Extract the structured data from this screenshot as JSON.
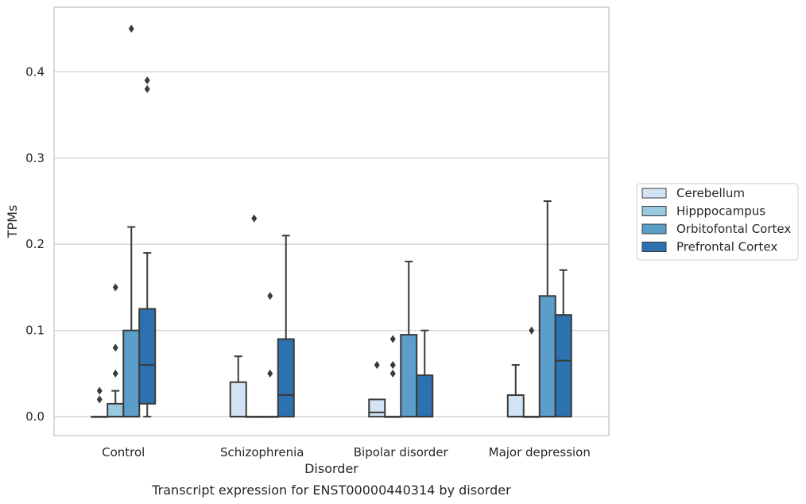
{
  "caption": "Transcript expression for ENST00000440314 by disorder",
  "chart_data": {
    "type": "box",
    "xlabel": "Disorder",
    "ylabel": "TPMs",
    "ylim": [
      -0.022,
      0.475
    ],
    "yticks": [
      0.0,
      0.1,
      0.2,
      0.3,
      0.4
    ],
    "ytick_labels": [
      "0.0",
      "0.1",
      "0.2",
      "0.3",
      "0.4"
    ],
    "grid": "horizontal",
    "legend_position": "right",
    "categories": [
      "Control",
      "Schizophrenia",
      "Bipolar disorder",
      "Major depression"
    ],
    "series": [
      {
        "name": "Cerebellum",
        "color": "#d2e3f3",
        "boxes": [
          {
            "q1": 0.0,
            "median": 0.0,
            "q3": 0.0,
            "whisker_low": 0.0,
            "whisker_high": 0.0,
            "outliers": [
              0.02,
              0.03
            ]
          },
          {
            "q1": 0.0,
            "median": 0.0,
            "q3": 0.04,
            "whisker_low": 0.0,
            "whisker_high": 0.07,
            "outliers": []
          },
          {
            "q1": 0.0,
            "median": 0.005,
            "q3": 0.02,
            "whisker_low": 0.0,
            "whisker_high": 0.02,
            "outliers": [
              0.06
            ]
          },
          {
            "q1": 0.0,
            "median": 0.0,
            "q3": 0.025,
            "whisker_low": 0.0,
            "whisker_high": 0.06,
            "outliers": []
          }
        ]
      },
      {
        "name": "Hipppocampus",
        "color": "#9ac8e0",
        "boxes": [
          {
            "q1": 0.0,
            "median": 0.0,
            "q3": 0.015,
            "whisker_low": 0.0,
            "whisker_high": 0.03,
            "outliers": [
              0.05,
              0.08,
              0.15
            ]
          },
          {
            "q1": 0.0,
            "median": 0.0,
            "q3": 0.0,
            "whisker_low": 0.0,
            "whisker_high": 0.0,
            "outliers": [
              0.23
            ]
          },
          {
            "q1": 0.0,
            "median": 0.0,
            "q3": 0.0,
            "whisker_low": 0.0,
            "whisker_high": 0.0,
            "outliers": [
              0.05,
              0.06,
              0.09
            ]
          },
          {
            "q1": 0.0,
            "median": 0.0,
            "q3": 0.0,
            "whisker_low": 0.0,
            "whisker_high": 0.0,
            "outliers": [
              0.1
            ]
          }
        ]
      },
      {
        "name": "Orbitofontal Cortex",
        "color": "#5a9ec9",
        "boxes": [
          {
            "q1": 0.0,
            "median": 0.0,
            "q3": 0.1,
            "whisker_low": 0.0,
            "whisker_high": 0.22,
            "outliers": [
              0.45
            ]
          },
          {
            "q1": 0.0,
            "median": 0.0,
            "q3": 0.0,
            "whisker_low": 0.0,
            "whisker_high": 0.0,
            "outliers": [
              0.05,
              0.14
            ]
          },
          {
            "q1": 0.0,
            "median": 0.0,
            "q3": 0.095,
            "whisker_low": 0.0,
            "whisker_high": 0.18,
            "outliers": []
          },
          {
            "q1": 0.0,
            "median": 0.0,
            "q3": 0.14,
            "whisker_low": 0.0,
            "whisker_high": 0.25,
            "outliers": []
          }
        ]
      },
      {
        "name": "Prefrontal Cortex",
        "color": "#2c72b0",
        "boxes": [
          {
            "q1": 0.015,
            "median": 0.06,
            "q3": 0.125,
            "whisker_low": 0.0,
            "whisker_high": 0.19,
            "outliers": [
              0.38,
              0.39
            ]
          },
          {
            "q1": 0.0,
            "median": 0.025,
            "q3": 0.09,
            "whisker_low": 0.0,
            "whisker_high": 0.21,
            "outliers": []
          },
          {
            "q1": 0.0,
            "median": 0.0,
            "q3": 0.048,
            "whisker_low": 0.0,
            "whisker_high": 0.1,
            "outliers": []
          },
          {
            "q1": 0.0,
            "median": 0.065,
            "q3": 0.118,
            "whisker_low": 0.0,
            "whisker_high": 0.17,
            "outliers": []
          }
        ]
      }
    ]
  }
}
